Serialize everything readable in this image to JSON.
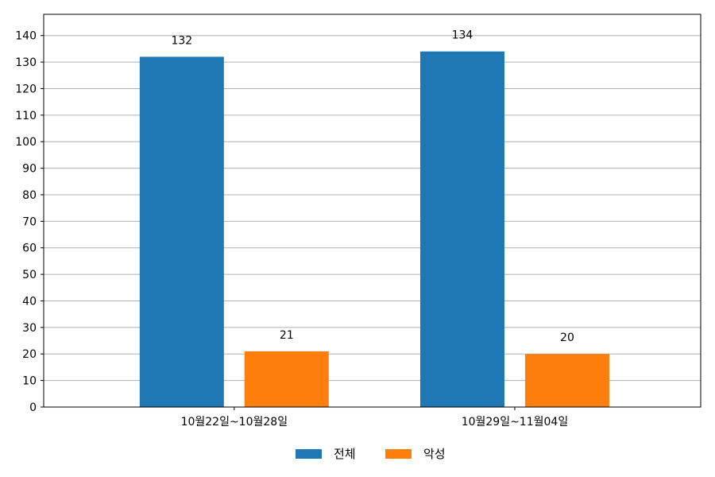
{
  "chart_data": {
    "type": "bar",
    "categories": [
      "10월22일~10월28일",
      "10월29일~11월04일"
    ],
    "series": [
      {
        "name": "전체",
        "values": [
          132,
          134
        ],
        "color": "#1f77b4"
      },
      {
        "name": "악성",
        "values": [
          21,
          20
        ],
        "color": "#ff7f0e"
      }
    ],
    "ylim": [
      0,
      148
    ],
    "yticks": [
      0,
      10,
      20,
      30,
      40,
      50,
      60,
      70,
      80,
      90,
      100,
      110,
      120,
      130,
      140
    ],
    "grid": true,
    "legend_position": "bottom-center",
    "data_labels": true
  }
}
